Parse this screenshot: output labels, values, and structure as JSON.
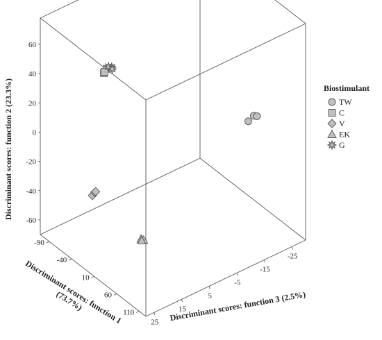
{
  "chart_data": {
    "type": "scatter",
    "subtype": "3d-scatter",
    "xlabel": "Discriminant scores: function 1 (73.7%)",
    "xlabel_lines": [
      "Discriminant scores: function 1",
      "(73.7%)"
    ],
    "ylabel": "Discriminant scores: function 2 (23.3%)",
    "zlabel": "Discriminant scores: function 3 (2.5%)",
    "x_ticks": [
      "-90",
      "-40",
      "10",
      "60",
      "110"
    ],
    "y_ticks": [
      "60",
      "40",
      "20",
      "0",
      "-20",
      "-40",
      "-60"
    ],
    "z_ticks": [
      "-25",
      "-15",
      "-5",
      "5",
      "15",
      "25"
    ],
    "xlim": [
      -110,
      125
    ],
    "ylim": [
      -70,
      78
    ],
    "zlim": [
      -30,
      28
    ],
    "legend_title": "Biostimulant",
    "legend_position": "right",
    "colors": {
      "marker_fill": "#bfbfbf",
      "marker_stroke": "#555555",
      "frame": "#555555"
    },
    "series": [
      {
        "name": "TW",
        "marker": "circle",
        "points": [
          [
            120,
            30,
            -12
          ],
          [
            120,
            28,
            -10
          ],
          [
            121,
            29,
            -13
          ]
        ]
      },
      {
        "name": "C",
        "marker": "square",
        "points": [
          [
            -5,
            60,
            22
          ],
          [
            -5,
            62,
            21
          ],
          [
            -4,
            61,
            22
          ]
        ]
      },
      {
        "name": "V",
        "marker": "diamond",
        "points": [
          [
            0,
            -18,
            27
          ],
          [
            -1,
            -17,
            26
          ],
          [
            1,
            -16,
            26
          ]
        ]
      },
      {
        "name": "EK",
        "marker": "triangle",
        "points": [
          [
            35,
            -50,
            15
          ],
          [
            34,
            -52,
            14
          ],
          [
            36,
            -51,
            15
          ]
        ]
      },
      {
        "name": "G",
        "marker": "star",
        "points": [
          [
            -92,
            28,
            5
          ],
          [
            -93,
            29,
            6
          ],
          [
            -91,
            27,
            5
          ]
        ]
      }
    ]
  }
}
